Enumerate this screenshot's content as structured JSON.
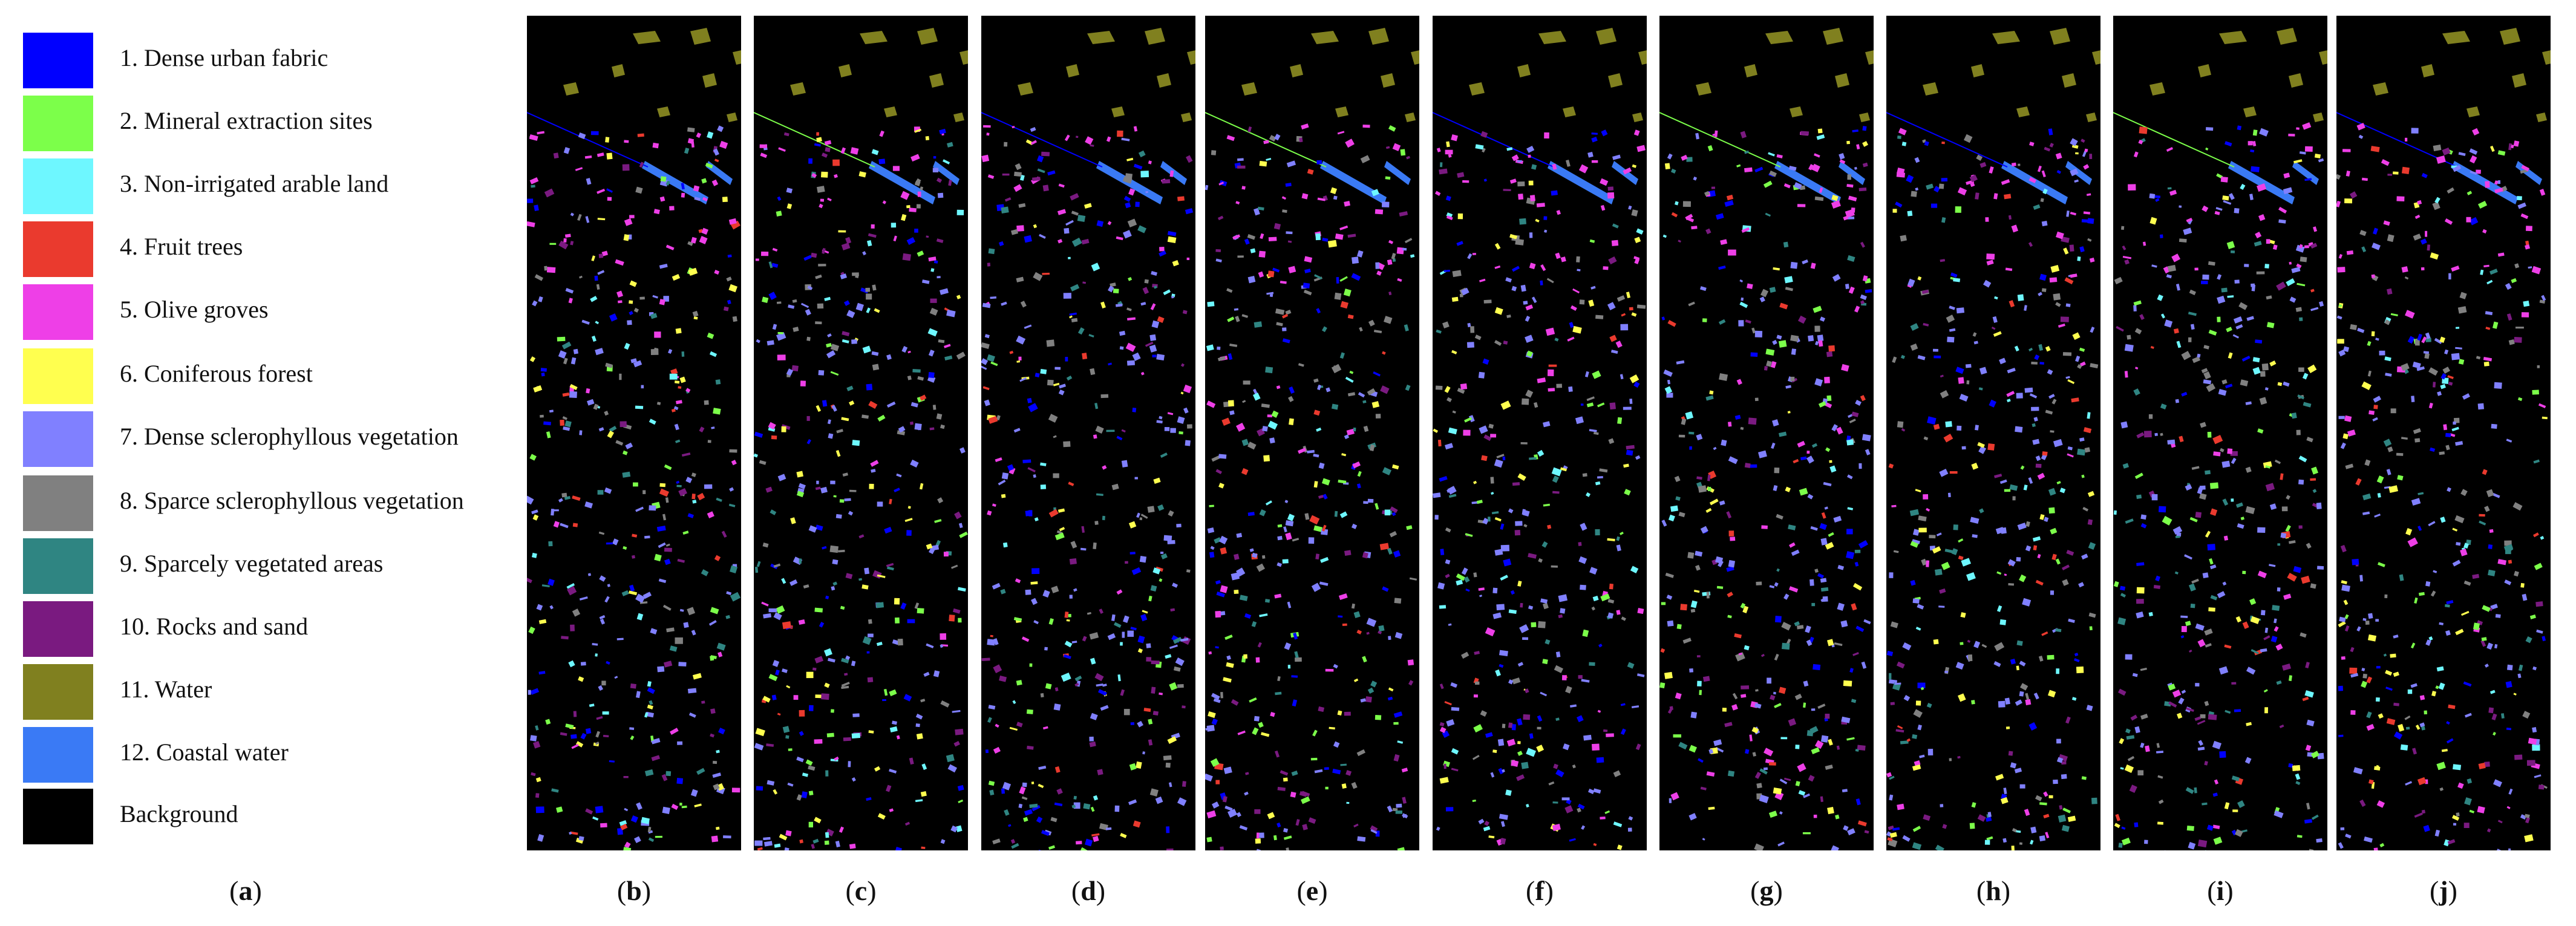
{
  "legend": {
    "items": [
      {
        "label": "1. Dense urban fabric",
        "color": "#0000ff"
      },
      {
        "label": "2. Mineral extraction sites",
        "color": "#7cff4a"
      },
      {
        "label": "3. Non-irrigated arable land",
        "color": "#6ef7ff"
      },
      {
        "label": "4. Fruit trees",
        "color": "#ea3a2e"
      },
      {
        "label": "5. Olive groves",
        "color": "#ee3fe7"
      },
      {
        "label": "6. Coniferous  forest",
        "color": "#ffff4f"
      },
      {
        "label": "7. Dense sclerophyllous vegetation",
        "color": "#8080ff"
      },
      {
        "label": "8. Sparce sclerophyllous vegetation",
        "color": "#808080"
      },
      {
        "label": "9. Sparcely vegetated areas",
        "color": "#2f8582"
      },
      {
        "label": "10. Rocks and sand",
        "color": "#7a1a80"
      },
      {
        "label": "11. Water",
        "color": "#80801f"
      },
      {
        "label": "12. Coastal water",
        "color": "#3a7af5"
      },
      {
        "label": "Background",
        "color": "#000000"
      }
    ]
  },
  "captions": {
    "a": {
      "open": "(",
      "letter": "a",
      "close": ")"
    },
    "b": {
      "open": "(",
      "letter": "b",
      "close": ")"
    },
    "c": {
      "open": "(",
      "letter": "c",
      "close": ")"
    },
    "d": {
      "open": "(",
      "letter": "d",
      "close": ")"
    },
    "e": {
      "open": "(",
      "letter": "e",
      "close": ")"
    },
    "f": {
      "open": "(",
      "letter": "f",
      "close": ")"
    },
    "g": {
      "open": "(",
      "letter": "g",
      "close": ")"
    },
    "h": {
      "open": "(",
      "letter": "h",
      "close": ")"
    },
    "i": {
      "open": "(",
      "letter": "i",
      "close": ")"
    },
    "j": {
      "open": "(",
      "letter": "j",
      "close": ")"
    }
  }
}
